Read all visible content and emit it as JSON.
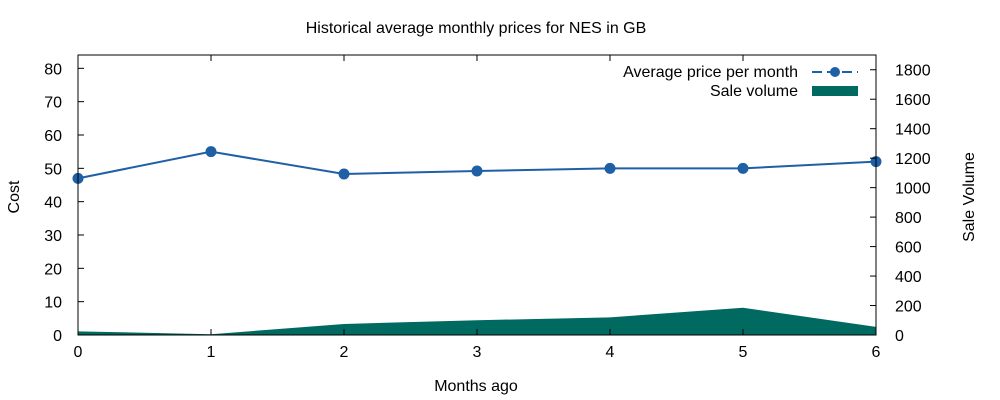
{
  "chart_data": {
    "type": "line",
    "title": "Historical average monthly prices for NES in GB",
    "xlabel": "Months ago",
    "ylabel": "Cost",
    "y2label": "Sale Volume",
    "x": [
      0,
      1,
      2,
      3,
      4,
      5,
      6
    ],
    "xlim": [
      0,
      6
    ],
    "ylim": [
      0,
      84
    ],
    "y2lim": [
      0,
      1900
    ],
    "x_ticks": [
      "0",
      "1",
      "2",
      "3",
      "4",
      "5",
      "6"
    ],
    "y_ticks": [
      "0",
      "10",
      "20",
      "30",
      "40",
      "50",
      "60",
      "70",
      "80"
    ],
    "y2_ticks": [
      "0",
      "200",
      "400",
      "600",
      "800",
      "1000",
      "1200",
      "1400",
      "1600",
      "1800"
    ],
    "grid": false,
    "legend_position": "top-right",
    "series": [
      {
        "name": "Average price per month",
        "type": "line",
        "axis": "left",
        "color": "#1f5fa6",
        "marker": "circle",
        "values": [
          47,
          55,
          48.3,
          49.2,
          50,
          50,
          52
        ]
      },
      {
        "name": "Sale volume",
        "type": "area",
        "axis": "right",
        "color": "#006a60",
        "values": [
          25,
          5,
          75,
          100,
          120,
          185,
          55
        ]
      }
    ]
  }
}
